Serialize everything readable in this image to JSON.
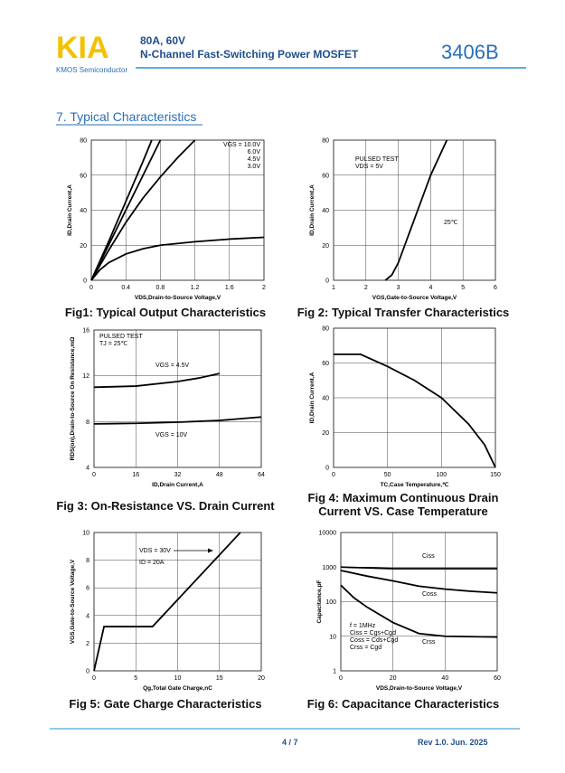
{
  "header": {
    "logo": "KIA",
    "company": "KMOS Semiconductor",
    "rating": "80A, 60V",
    "description": "N-Channel Fast-Switching Power MOSFET",
    "part_number": "3406B"
  },
  "section_title": "7. Typical Characteristics",
  "chart_data": [
    {
      "type": "line",
      "title": "Fig1: Typical Output Characteristics",
      "xlabel": "VDS,Drain-to-Source Voltage,V",
      "ylabel": "ID,Drain Current,A",
      "xlim": [
        0,
        2
      ],
      "xticks": [
        0,
        0.4,
        0.8,
        1.2,
        1.6,
        2
      ],
      "ylim": [
        0,
        80
      ],
      "yticks": [
        0,
        20,
        40,
        60,
        80
      ],
      "grid": true,
      "series": [
        {
          "name": "VGS = 10.0V",
          "color": "#000000",
          "x": [
            0,
            0.2,
            0.4,
            0.6,
            0.7
          ],
          "values": [
            0,
            22,
            45,
            68,
            80
          ]
        },
        {
          "name": "6.0V",
          "color": "#000000",
          "x": [
            0,
            0.2,
            0.4,
            0.6,
            0.8
          ],
          "values": [
            0,
            20,
            40,
            60,
            80
          ]
        },
        {
          "name": "4.5V",
          "color": "#000000",
          "x": [
            0,
            0.2,
            0.4,
            0.6,
            0.8,
            1.0,
            1.2
          ],
          "values": [
            0,
            17,
            33,
            47,
            59,
            70,
            80
          ]
        },
        {
          "name": "3.0V",
          "color": "#000000",
          "x": [
            0,
            0.1,
            0.2,
            0.4,
            0.6,
            0.8,
            1.2,
            1.6,
            2
          ],
          "values": [
            0,
            6,
            10,
            15,
            18,
            20,
            22,
            23.5,
            24.5
          ]
        }
      ]
    },
    {
      "type": "line",
      "title": "Fig 2: Typical Transfer Characteristics",
      "xlabel": "VGS,Gate-to-Source Voltage,V",
      "ylabel": "ID,Drain Current,A",
      "xlim": [
        1,
        6
      ],
      "xticks": [
        1,
        2,
        3,
        4,
        5,
        6
      ],
      "ylim": [
        0,
        80
      ],
      "yticks": [
        0,
        20,
        40,
        60,
        80
      ],
      "grid": true,
      "annotations": [
        "PULSED TEST",
        "VDS = 5V"
      ],
      "series": [
        {
          "name": "25℃",
          "color": "#000000",
          "x": [
            2.6,
            2.8,
            3.0,
            3.2,
            3.5,
            4.0,
            4.5
          ],
          "values": [
            0,
            3,
            10,
            20,
            35,
            60,
            80
          ]
        }
      ]
    },
    {
      "type": "line",
      "title": "Fig 3: On-Resistance VS. Drain Current",
      "xlabel": "ID,Drain Current,A",
      "ylabel": "RDS(on),Drain-to-Source On Resistance,mΩ",
      "xlim": [
        0,
        64
      ],
      "xticks": [
        0,
        16,
        32,
        48,
        64
      ],
      "ylim": [
        4,
        16
      ],
      "yticks": [
        4,
        8,
        12,
        16
      ],
      "grid": true,
      "annotations": [
        "PULSED TEST",
        "TJ = 25℃"
      ],
      "series": [
        {
          "name": "VGS = 4.5V",
          "color": "#000000",
          "x": [
            0,
            16,
            32,
            40,
            48
          ],
          "values": [
            11,
            11.1,
            11.5,
            11.8,
            12.2
          ]
        },
        {
          "name": "VGS = 10V",
          "color": "#000000",
          "x": [
            0,
            16,
            32,
            48,
            64
          ],
          "values": [
            7.8,
            7.85,
            7.95,
            8.1,
            8.4
          ]
        }
      ]
    },
    {
      "type": "line",
      "title": "Fig 4: Maximum Continuous Drain Current VS. Case Temperature",
      "xlabel": "TC,Case Temperature,℃",
      "ylabel": "ID,Drain Current,A",
      "xlim": [
        0,
        150
      ],
      "xticks": [
        0,
        50,
        100,
        150
      ],
      "ylim": [
        0,
        80
      ],
      "yticks": [
        0,
        20,
        40,
        60,
        80
      ],
      "grid": true,
      "series": [
        {
          "color": "#000000",
          "x": [
            0,
            25,
            50,
            75,
            100,
            125,
            140,
            150
          ],
          "values": [
            65,
            65,
            58,
            50,
            40,
            25,
            13,
            0
          ]
        }
      ]
    },
    {
      "type": "line",
      "title": "Fig 5: Gate Charge Characteristics",
      "xlabel": "Qg,Total Gate Charge,nC",
      "ylabel": "VGS,Gate-to-Source Voltage,V",
      "xlim": [
        0,
        20
      ],
      "xticks": [
        0,
        5,
        10,
        15,
        20
      ],
      "ylim": [
        0,
        10
      ],
      "yticks": [
        0,
        2,
        4,
        6,
        8,
        10
      ],
      "grid": true,
      "annotations": [
        "VDS = 30V",
        "ID = 20A"
      ],
      "series": [
        {
          "color": "#000000",
          "x": [
            0,
            1.2,
            7,
            17.5
          ],
          "values": [
            0,
            3.2,
            3.2,
            10
          ]
        }
      ]
    },
    {
      "type": "line",
      "title": "Fig 6: Capacitance Characteristics",
      "xlabel": "VDS,Drain-to-Source Voltage,V",
      "ylabel": "Capacitance,pF",
      "xlim": [
        0,
        60
      ],
      "xticks": [
        0,
        20,
        40,
        60
      ],
      "ylim": [
        1,
        10000
      ],
      "yticks": [
        1,
        10,
        100,
        1000,
        10000
      ],
      "log_y": true,
      "grid": true,
      "annotations": [
        "f = 1MHz",
        "Ciss = Cgs+Cgd",
        "Coss = Cds+Cgd",
        "Crss = Cgd"
      ],
      "series": [
        {
          "name": "Ciss",
          "color": "#000000",
          "x": [
            0,
            10,
            20,
            40,
            60
          ],
          "values": [
            1000,
            950,
            900,
            900,
            900
          ]
        },
        {
          "name": "Coss",
          "color": "#000000",
          "x": [
            0,
            10,
            20,
            30,
            40,
            50,
            60
          ],
          "values": [
            800,
            550,
            400,
            280,
            230,
            200,
            180
          ]
        },
        {
          "name": "Crss",
          "color": "#000000",
          "x": [
            0,
            5,
            10,
            20,
            30,
            40,
            60
          ],
          "values": [
            300,
            130,
            70,
            25,
            12,
            10,
            9.5
          ]
        }
      ]
    }
  ],
  "footer": {
    "page": "4 / 7",
    "revision": "Rev 1.0. Jun. 2025"
  }
}
